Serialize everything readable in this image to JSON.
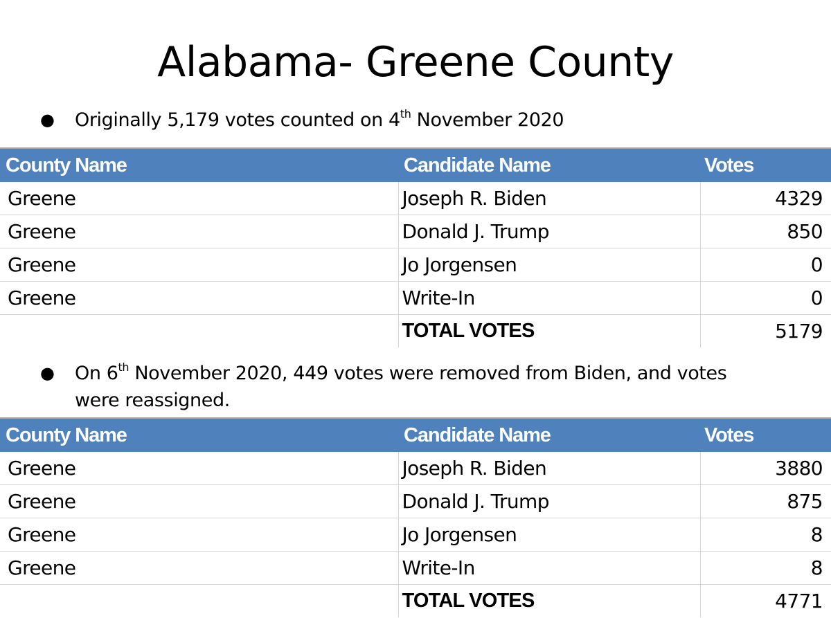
{
  "title": "Alabama- Greene County",
  "bullet1": {
    "prefix": "Originally 5,179 votes counted on 4",
    "sup": "th",
    "suffix": " November 2020"
  },
  "bullet2": {
    "prefix": "On 6",
    "sup": "th",
    "suffix": " November 2020, 449 votes were removed from Biden, and votes were reassigned."
  },
  "table_headers": {
    "county": "County Name",
    "candidate": "Candidate Name",
    "votes": "Votes"
  },
  "table1": {
    "rows": [
      {
        "county": "Greene",
        "candidate": "Joseph R. Biden",
        "votes": "4329"
      },
      {
        "county": "Greene",
        "candidate": "Donald J. Trump",
        "votes": "850"
      },
      {
        "county": "Greene",
        "candidate": "Jo Jorgensen",
        "votes": "0"
      },
      {
        "county": "Greene",
        "candidate": "Write-In",
        "votes": "0"
      }
    ],
    "total_label": "TOTAL VOTES",
    "total_value": "5179"
  },
  "table2": {
    "rows": [
      {
        "county": "Greene",
        "candidate": "Joseph R. Biden",
        "votes": "3880"
      },
      {
        "county": "Greene",
        "candidate": "Donald J. Trump",
        "votes": "875"
      },
      {
        "county": "Greene",
        "candidate": "Jo Jorgensen",
        "votes": "8"
      },
      {
        "county": "Greene",
        "candidate": "Write-In",
        "votes": "8"
      }
    ],
    "total_label": "TOTAL VOTES",
    "total_value": "4771"
  },
  "colors": {
    "header_bg": "#4f81bd",
    "header_text": "#ffffff",
    "grid": "#d4d4d4"
  }
}
